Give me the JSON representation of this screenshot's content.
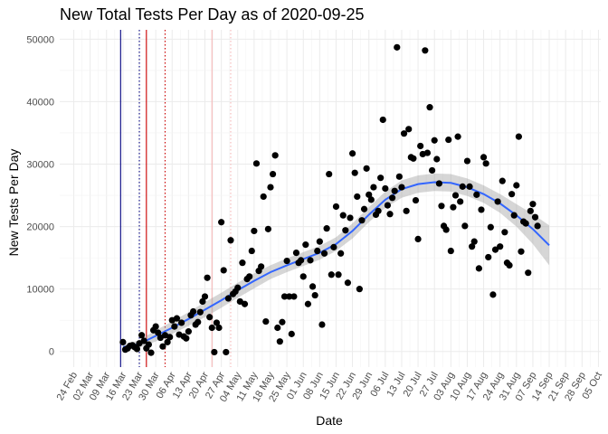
{
  "chart_data": {
    "type": "scatter",
    "title": "New Total Tests Per Day as of 2020-09-25",
    "xlabel": "Date",
    "ylabel": "New Tests Per Day",
    "xlim": [
      "2020-02-18",
      "2020-10-06"
    ],
    "ylim": [
      -2500,
      51500
    ],
    "grid": true,
    "legend": "none",
    "x_ticks": [
      "2020-02-24",
      "2020-03-02",
      "2020-03-09",
      "2020-03-16",
      "2020-03-23",
      "2020-03-30",
      "2020-04-06",
      "2020-04-13",
      "2020-04-20",
      "2020-04-27",
      "2020-05-04",
      "2020-05-11",
      "2020-05-18",
      "2020-05-25",
      "2020-06-01",
      "2020-06-08",
      "2020-06-15",
      "2020-06-22",
      "2020-06-29",
      "2020-07-06",
      "2020-07-13",
      "2020-07-20",
      "2020-07-27",
      "2020-08-03",
      "2020-08-10",
      "2020-08-17",
      "2020-08-24",
      "2020-08-31",
      "2020-09-07",
      "2020-09-14",
      "2020-09-21",
      "2020-09-28",
      "2020-10-05"
    ],
    "x_tick_labels": [
      "24 Feb",
      "02 Mar",
      "09 Mar",
      "16 Mar",
      "23 Mar",
      "30 Mar",
      "06 Apr",
      "13 Apr",
      "20 Apr",
      "27 Apr",
      "04 May",
      "11 May",
      "18 May",
      "25 May",
      "01 Jun",
      "08 Jun",
      "15 Jun",
      "22 Jun",
      "29 Jun",
      "06 Jul",
      "13 Jul",
      "20 Jul",
      "27 Jul",
      "03 Aug",
      "10 Aug",
      "17 Aug",
      "24 Aug",
      "31 Aug",
      "07 Sep",
      "14 Sep",
      "21 Sep",
      "28 Sep",
      "05 Oct"
    ],
    "y_ticks": [
      0,
      10000,
      20000,
      30000,
      40000,
      50000
    ],
    "y_tick_labels": [
      "0",
      "10000",
      "20000",
      "30000",
      "40000",
      "50000"
    ],
    "vlines": [
      {
        "x": "2020-03-15",
        "color": "#000080",
        "style": "solid"
      },
      {
        "x": "2020-03-23",
        "color": "#000080",
        "style": "dotted"
      },
      {
        "x": "2020-03-26",
        "color": "#cc0000",
        "style": "solid"
      },
      {
        "x": "2020-04-03",
        "color": "#cc0000",
        "style": "dotted"
      },
      {
        "x": "2020-04-23",
        "color": "#f4b6b6",
        "style": "solid"
      },
      {
        "x": "2020-05-01",
        "color": "#f4b6b6",
        "style": "dotted"
      }
    ],
    "points": [
      {
        "x": "2020-03-16",
        "y": 1500
      },
      {
        "x": "2020-03-17",
        "y": 300
      },
      {
        "x": "2020-03-18",
        "y": 500
      },
      {
        "x": "2020-03-19",
        "y": 900
      },
      {
        "x": "2020-03-20",
        "y": 1000
      },
      {
        "x": "2020-03-21",
        "y": 700
      },
      {
        "x": "2020-03-22",
        "y": 400
      },
      {
        "x": "2020-03-23",
        "y": 1300
      },
      {
        "x": "2020-03-24",
        "y": 2600
      },
      {
        "x": "2020-03-25",
        "y": 1700
      },
      {
        "x": "2020-03-26",
        "y": 500
      },
      {
        "x": "2020-03-27",
        "y": 1100
      },
      {
        "x": "2020-03-28",
        "y": -200
      },
      {
        "x": "2020-03-29",
        "y": 3400
      },
      {
        "x": "2020-03-30",
        "y": 4000
      },
      {
        "x": "2020-03-31",
        "y": 3000
      },
      {
        "x": "2020-04-01",
        "y": 2200
      },
      {
        "x": "2020-04-02",
        "y": 800
      },
      {
        "x": "2020-04-03",
        "y": 2600
      },
      {
        "x": "2020-04-04",
        "y": 1500
      },
      {
        "x": "2020-04-05",
        "y": 2300
      },
      {
        "x": "2020-04-06",
        "y": 5000
      },
      {
        "x": "2020-04-07",
        "y": 4000
      },
      {
        "x": "2020-04-08",
        "y": 5300
      },
      {
        "x": "2020-04-09",
        "y": 2700
      },
      {
        "x": "2020-04-10",
        "y": 4600
      },
      {
        "x": "2020-04-11",
        "y": 2400
      },
      {
        "x": "2020-04-12",
        "y": 2100
      },
      {
        "x": "2020-04-13",
        "y": 3200
      },
      {
        "x": "2020-04-14",
        "y": 5800
      },
      {
        "x": "2020-04-15",
        "y": 6400
      },
      {
        "x": "2020-04-16",
        "y": 4300
      },
      {
        "x": "2020-04-17",
        "y": 4700
      },
      {
        "x": "2020-04-18",
        "y": 6300
      },
      {
        "x": "2020-04-19",
        "y": 8000
      },
      {
        "x": "2020-04-20",
        "y": 8800
      },
      {
        "x": "2020-04-21",
        "y": 11800
      },
      {
        "x": "2020-04-22",
        "y": 5500
      },
      {
        "x": "2020-04-23",
        "y": 3800
      },
      {
        "x": "2020-04-24",
        "y": -100
      },
      {
        "x": "2020-04-25",
        "y": 4600
      },
      {
        "x": "2020-04-26",
        "y": 3800
      },
      {
        "x": "2020-04-27",
        "y": 20700
      },
      {
        "x": "2020-04-28",
        "y": 13000
      },
      {
        "x": "2020-04-29",
        "y": -100
      },
      {
        "x": "2020-04-30",
        "y": 8500
      },
      {
        "x": "2020-05-01",
        "y": 17800
      },
      {
        "x": "2020-05-02",
        "y": 9200
      },
      {
        "x": "2020-05-03",
        "y": 9600
      },
      {
        "x": "2020-05-04",
        "y": 10200
      },
      {
        "x": "2020-05-05",
        "y": 8000
      },
      {
        "x": "2020-05-06",
        "y": 14200
      },
      {
        "x": "2020-05-07",
        "y": 7600
      },
      {
        "x": "2020-05-08",
        "y": 11600
      },
      {
        "x": "2020-05-09",
        "y": 12000
      },
      {
        "x": "2020-05-10",
        "y": 16100
      },
      {
        "x": "2020-05-11",
        "y": 19300
      },
      {
        "x": "2020-05-12",
        "y": 30100
      },
      {
        "x": "2020-05-13",
        "y": 12900
      },
      {
        "x": "2020-05-14",
        "y": 13600
      },
      {
        "x": "2020-05-15",
        "y": 24800
      },
      {
        "x": "2020-05-16",
        "y": 4800
      },
      {
        "x": "2020-05-17",
        "y": 19600
      },
      {
        "x": "2020-05-18",
        "y": 26300
      },
      {
        "x": "2020-05-19",
        "y": 28400
      },
      {
        "x": "2020-05-20",
        "y": 31400
      },
      {
        "x": "2020-05-21",
        "y": 3800
      },
      {
        "x": "2020-05-22",
        "y": 1600
      },
      {
        "x": "2020-05-23",
        "y": 4700
      },
      {
        "x": "2020-05-24",
        "y": 8800
      },
      {
        "x": "2020-05-25",
        "y": 14500
      },
      {
        "x": "2020-05-26",
        "y": 8800
      },
      {
        "x": "2020-05-27",
        "y": 2800
      },
      {
        "x": "2020-05-28",
        "y": 8800
      },
      {
        "x": "2020-05-29",
        "y": 15800
      },
      {
        "x": "2020-05-30",
        "y": 14200
      },
      {
        "x": "2020-05-31",
        "y": 14600
      },
      {
        "x": "2020-06-01",
        "y": 12000
      },
      {
        "x": "2020-06-02",
        "y": 17100
      },
      {
        "x": "2020-06-03",
        "y": 7600
      },
      {
        "x": "2020-06-04",
        "y": 14600
      },
      {
        "x": "2020-06-05",
        "y": 10400
      },
      {
        "x": "2020-06-06",
        "y": 9000
      },
      {
        "x": "2020-06-07",
        "y": 16100
      },
      {
        "x": "2020-06-08",
        "y": 17600
      },
      {
        "x": "2020-06-09",
        "y": 4300
      },
      {
        "x": "2020-06-10",
        "y": 15700
      },
      {
        "x": "2020-06-11",
        "y": 19700
      },
      {
        "x": "2020-06-12",
        "y": 28400
      },
      {
        "x": "2020-06-13",
        "y": 12300
      },
      {
        "x": "2020-06-14",
        "y": 16700
      },
      {
        "x": "2020-06-15",
        "y": 23200
      },
      {
        "x": "2020-06-16",
        "y": 12300
      },
      {
        "x": "2020-06-17",
        "y": 15700
      },
      {
        "x": "2020-06-18",
        "y": 21800
      },
      {
        "x": "2020-06-19",
        "y": 19400
      },
      {
        "x": "2020-06-20",
        "y": 11000
      },
      {
        "x": "2020-06-21",
        "y": 21400
      },
      {
        "x": "2020-06-22",
        "y": 31700
      },
      {
        "x": "2020-06-23",
        "y": 28600
      },
      {
        "x": "2020-06-24",
        "y": 24800
      },
      {
        "x": "2020-06-25",
        "y": 10000
      },
      {
        "x": "2020-06-26",
        "y": 21000
      },
      {
        "x": "2020-06-27",
        "y": 22800
      },
      {
        "x": "2020-06-28",
        "y": 29300
      },
      {
        "x": "2020-06-29",
        "y": 25100
      },
      {
        "x": "2020-06-30",
        "y": 24300
      },
      {
        "x": "2020-07-01",
        "y": 26300
      },
      {
        "x": "2020-07-02",
        "y": 21900
      },
      {
        "x": "2020-07-03",
        "y": 22500
      },
      {
        "x": "2020-07-04",
        "y": 27800
      },
      {
        "x": "2020-07-05",
        "y": 37100
      },
      {
        "x": "2020-07-06",
        "y": 26100
      },
      {
        "x": "2020-07-07",
        "y": 23400
      },
      {
        "x": "2020-07-08",
        "y": 22000
      },
      {
        "x": "2020-07-09",
        "y": 24600
      },
      {
        "x": "2020-07-10",
        "y": 25700
      },
      {
        "x": "2020-07-11",
        "y": 48700
      },
      {
        "x": "2020-07-12",
        "y": 28000
      },
      {
        "x": "2020-07-13",
        "y": 26300
      },
      {
        "x": "2020-07-14",
        "y": 34900
      },
      {
        "x": "2020-07-15",
        "y": 22500
      },
      {
        "x": "2020-07-16",
        "y": 35600
      },
      {
        "x": "2020-07-17",
        "y": 31100
      },
      {
        "x": "2020-07-18",
        "y": 30900
      },
      {
        "x": "2020-07-19",
        "y": 24200
      },
      {
        "x": "2020-07-20",
        "y": 18000
      },
      {
        "x": "2020-07-21",
        "y": 32900
      },
      {
        "x": "2020-07-22",
        "y": 31600
      },
      {
        "x": "2020-07-23",
        "y": 48200
      },
      {
        "x": "2020-07-24",
        "y": 31800
      },
      {
        "x": "2020-07-25",
        "y": 39100
      },
      {
        "x": "2020-07-26",
        "y": 29000
      },
      {
        "x": "2020-07-27",
        "y": 33800
      },
      {
        "x": "2020-07-28",
        "y": 30800
      },
      {
        "x": "2020-07-29",
        "y": 26900
      },
      {
        "x": "2020-07-30",
        "y": 23300
      },
      {
        "x": "2020-07-31",
        "y": 20100
      },
      {
        "x": "2020-08-01",
        "y": 19500
      },
      {
        "x": "2020-08-02",
        "y": 33900
      },
      {
        "x": "2020-08-03",
        "y": 16100
      },
      {
        "x": "2020-08-04",
        "y": 23100
      },
      {
        "x": "2020-08-05",
        "y": 25000
      },
      {
        "x": "2020-08-06",
        "y": 34400
      },
      {
        "x": "2020-08-07",
        "y": 24000
      },
      {
        "x": "2020-08-08",
        "y": 26400
      },
      {
        "x": "2020-08-09",
        "y": 20100
      },
      {
        "x": "2020-08-10",
        "y": 30500
      },
      {
        "x": "2020-08-11",
        "y": 26400
      },
      {
        "x": "2020-08-12",
        "y": 16800
      },
      {
        "x": "2020-08-13",
        "y": 17600
      },
      {
        "x": "2020-08-14",
        "y": 25100
      },
      {
        "x": "2020-08-15",
        "y": 13300
      },
      {
        "x": "2020-08-16",
        "y": 22700
      },
      {
        "x": "2020-08-17",
        "y": 31100
      },
      {
        "x": "2020-08-18",
        "y": 30100
      },
      {
        "x": "2020-08-19",
        "y": 15100
      },
      {
        "x": "2020-08-20",
        "y": 19900
      },
      {
        "x": "2020-08-21",
        "y": 9100
      },
      {
        "x": "2020-08-22",
        "y": 16300
      },
      {
        "x": "2020-08-23",
        "y": 24000
      },
      {
        "x": "2020-08-24",
        "y": 16800
      },
      {
        "x": "2020-08-25",
        "y": 27300
      },
      {
        "x": "2020-08-26",
        "y": 19100
      },
      {
        "x": "2020-08-27",
        "y": 14200
      },
      {
        "x": "2020-08-28",
        "y": 13800
      },
      {
        "x": "2020-08-29",
        "y": 25200
      },
      {
        "x": "2020-08-30",
        "y": 21800
      },
      {
        "x": "2020-08-31",
        "y": 26600
      },
      {
        "x": "2020-09-01",
        "y": 34400
      },
      {
        "x": "2020-09-02",
        "y": 16000
      },
      {
        "x": "2020-09-03",
        "y": 20800
      },
      {
        "x": "2020-09-04",
        "y": 20500
      },
      {
        "x": "2020-09-05",
        "y": 12600
      },
      {
        "x": "2020-09-06",
        "y": 22500
      },
      {
        "x": "2020-09-07",
        "y": 23600
      },
      {
        "x": "2020-09-08",
        "y": 21500
      },
      {
        "x": "2020-09-09",
        "y": 20100
      }
    ],
    "smooth": [
      {
        "x": "2020-03-16",
        "y": 700,
        "lo": 300,
        "hi": 1100
      },
      {
        "x": "2020-03-23",
        "y": 1200,
        "lo": 600,
        "hi": 1800
      },
      {
        "x": "2020-03-30",
        "y": 2500,
        "lo": 1600,
        "hi": 3400
      },
      {
        "x": "2020-04-06",
        "y": 3800,
        "lo": 2800,
        "hi": 4800
      },
      {
        "x": "2020-04-13",
        "y": 5200,
        "lo": 4100,
        "hi": 6300
      },
      {
        "x": "2020-04-20",
        "y": 6700,
        "lo": 5500,
        "hi": 7900
      },
      {
        "x": "2020-04-27",
        "y": 8200,
        "lo": 7000,
        "hi": 9400
      },
      {
        "x": "2020-05-04",
        "y": 9800,
        "lo": 8600,
        "hi": 11000
      },
      {
        "x": "2020-05-11",
        "y": 11300,
        "lo": 10100,
        "hi": 12500
      },
      {
        "x": "2020-05-18",
        "y": 12700,
        "lo": 11600,
        "hi": 13800
      },
      {
        "x": "2020-05-25",
        "y": 13800,
        "lo": 12700,
        "hi": 14900
      },
      {
        "x": "2020-06-01",
        "y": 14800,
        "lo": 13700,
        "hi": 15900
      },
      {
        "x": "2020-06-08",
        "y": 15800,
        "lo": 14700,
        "hi": 16900
      },
      {
        "x": "2020-06-15",
        "y": 17200,
        "lo": 16100,
        "hi": 18300
      },
      {
        "x": "2020-06-22",
        "y": 19300,
        "lo": 18100,
        "hi": 20500
      },
      {
        "x": "2020-06-29",
        "y": 21900,
        "lo": 20700,
        "hi": 23100
      },
      {
        "x": "2020-07-06",
        "y": 24300,
        "lo": 23000,
        "hi": 25600
      },
      {
        "x": "2020-07-13",
        "y": 26000,
        "lo": 24600,
        "hi": 27400
      },
      {
        "x": "2020-07-20",
        "y": 26800,
        "lo": 25400,
        "hi": 28200
      },
      {
        "x": "2020-07-27",
        "y": 27100,
        "lo": 25700,
        "hi": 28500
      },
      {
        "x": "2020-08-03",
        "y": 27000,
        "lo": 25600,
        "hi": 28400
      },
      {
        "x": "2020-08-10",
        "y": 26300,
        "lo": 24900,
        "hi": 27700
      },
      {
        "x": "2020-08-17",
        "y": 25200,
        "lo": 23800,
        "hi": 26600
      },
      {
        "x": "2020-08-24",
        "y": 23700,
        "lo": 22200,
        "hi": 25200
      },
      {
        "x": "2020-08-31",
        "y": 21800,
        "lo": 20000,
        "hi": 23600
      },
      {
        "x": "2020-09-07",
        "y": 19600,
        "lo": 17200,
        "hi": 22000
      },
      {
        "x": "2020-09-14",
        "y": 17000,
        "lo": 13800,
        "hi": 20200
      }
    ],
    "colors": {
      "points": "#000000",
      "smooth_line": "#3366ff",
      "ribbon": "#999999"
    }
  }
}
